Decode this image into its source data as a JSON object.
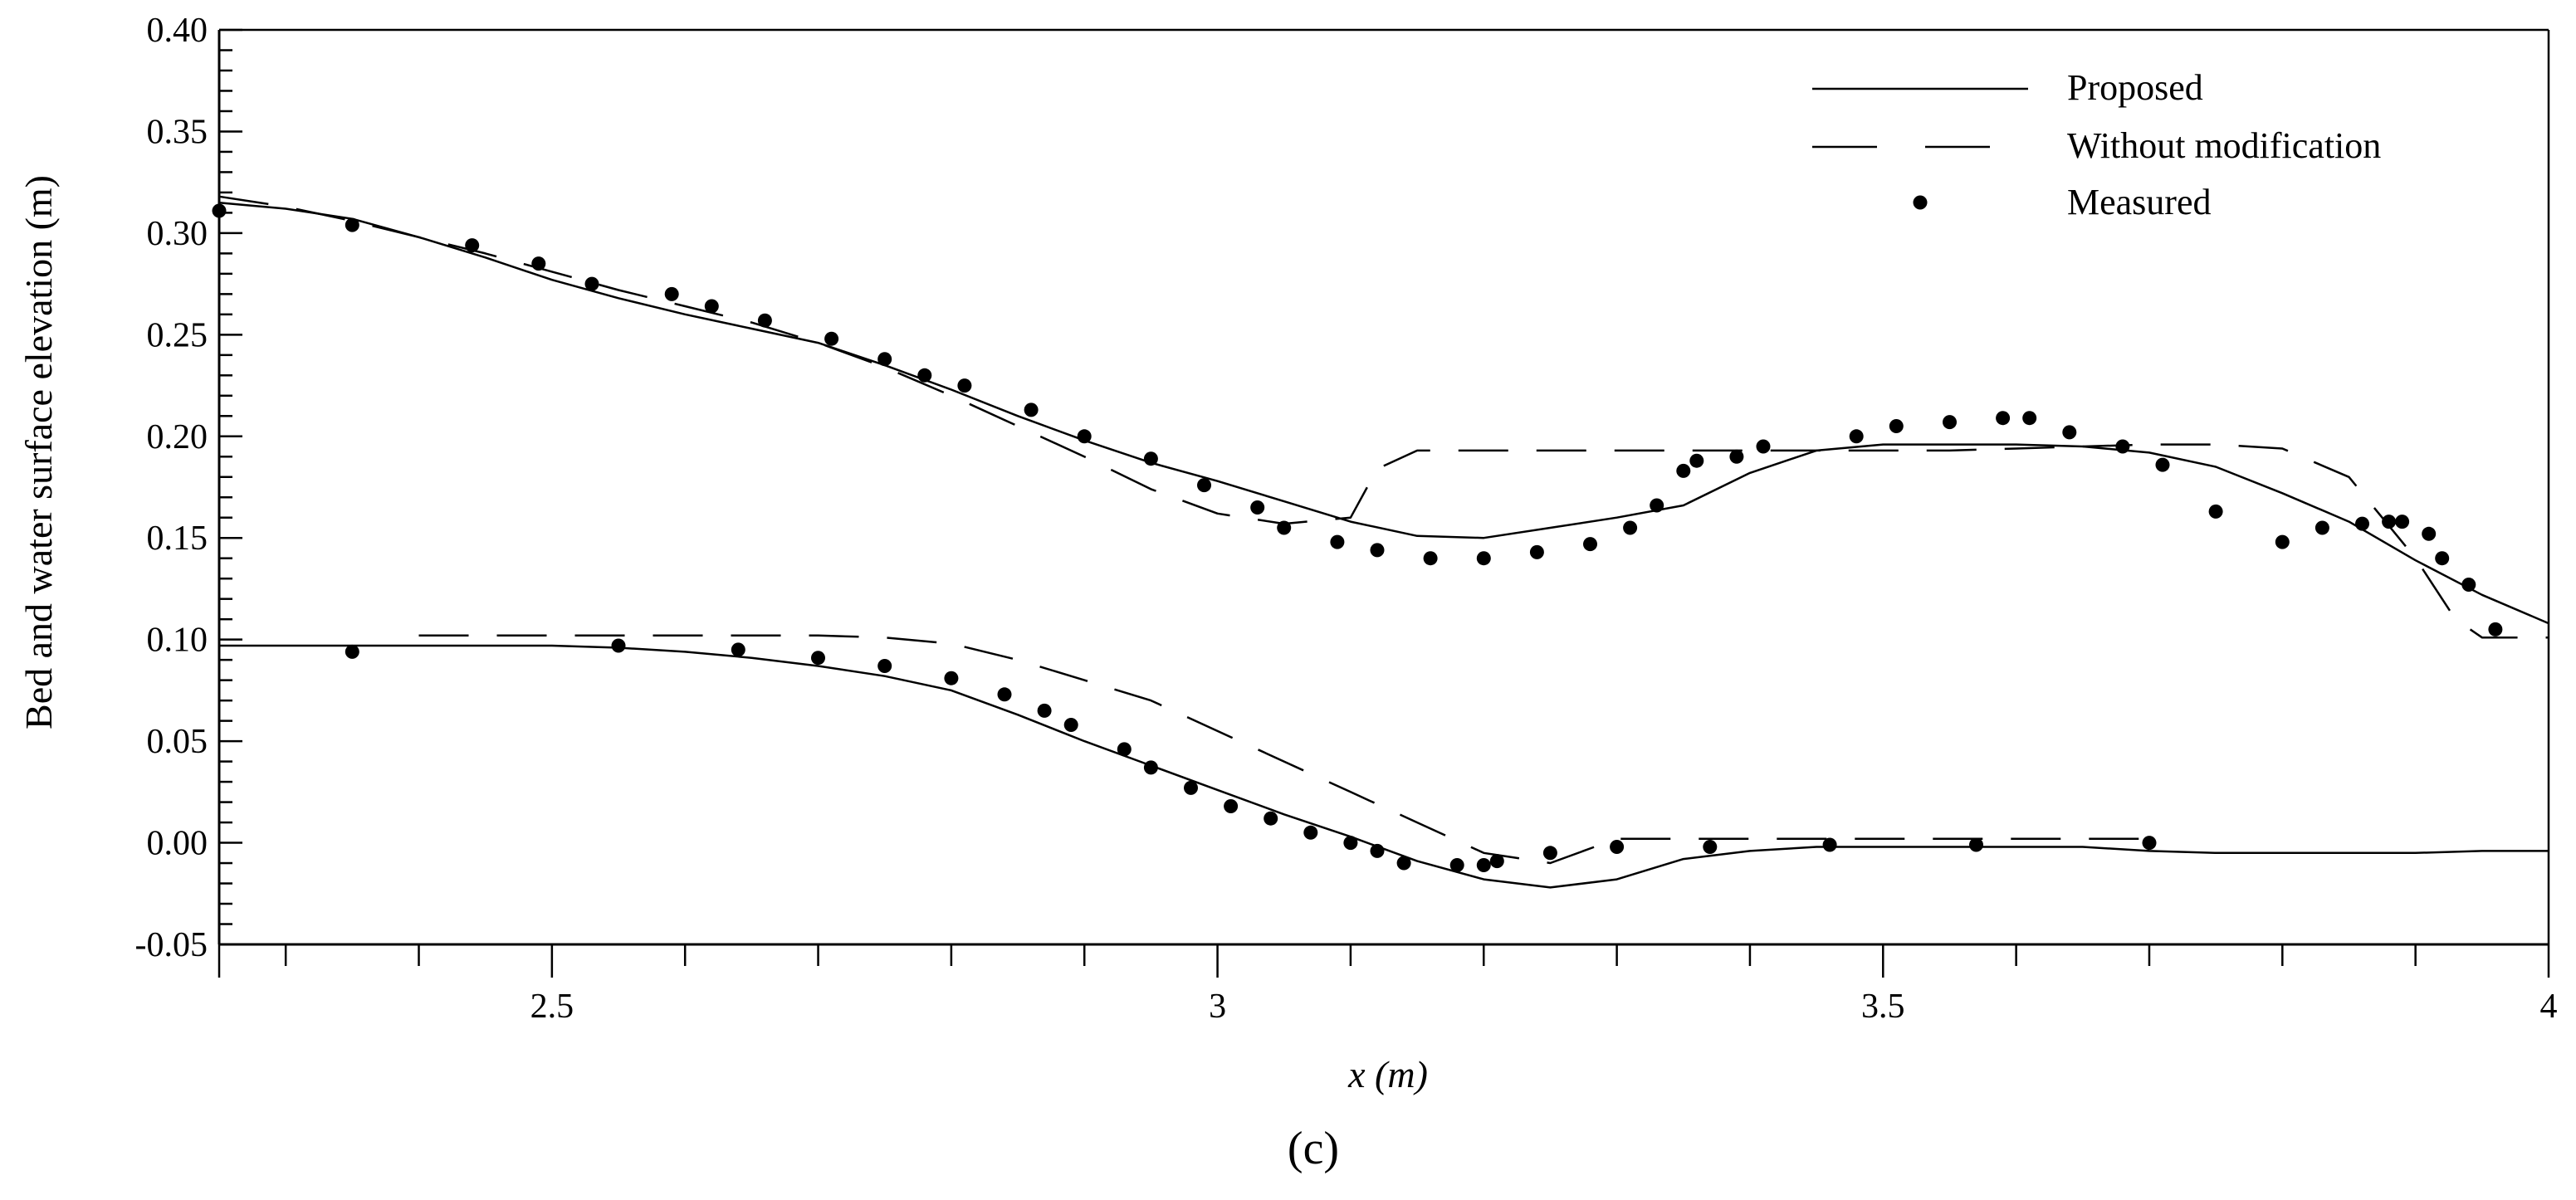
{
  "chart_data": {
    "type": "line",
    "panel_label": "(c)",
    "xlabel": "x (m)",
    "ylabel": "Bed and water surface elevation (m)",
    "xlim": [
      2.25,
      4.0
    ],
    "ylim": [
      -0.05,
      0.4
    ],
    "grid": false,
    "legend_position": "top-right",
    "x_tick_values": [
      2.5,
      3,
      3.5,
      4
    ],
    "x_tick_labels": [
      "2.5",
      "3",
      "3.5",
      "4"
    ],
    "y_tick_values": [
      -0.05,
      0.0,
      0.05,
      0.1,
      0.15,
      0.2,
      0.25,
      0.3,
      0.35,
      0.4
    ],
    "y_tick_labels": [
      "-0.05",
      "0.00",
      "0.05",
      "0.10",
      "0.15",
      "0.20",
      "0.25",
      "0.30",
      "0.35",
      "0.40"
    ],
    "legend": [
      {
        "label": "Proposed",
        "style": "solid"
      },
      {
        "label": "Without modification",
        "style": "dashed"
      },
      {
        "label": "Measured",
        "style": "dot"
      }
    ],
    "series": [
      {
        "name": "Proposed",
        "profile": "water surface",
        "style": "solid",
        "x": [
          2.25,
          2.3,
          2.35,
          2.4,
          2.45,
          2.5,
          2.55,
          2.6,
          2.65,
          2.7,
          2.75,
          2.8,
          2.85,
          2.9,
          2.95,
          3.0,
          3.05,
          3.1,
          3.15,
          3.2,
          3.25,
          3.3,
          3.35,
          3.4,
          3.45,
          3.5,
          3.55,
          3.6,
          3.65,
          3.7,
          3.75,
          3.8,
          3.85,
          3.9,
          3.95,
          4.0
        ],
        "y": [
          0.315,
          0.312,
          0.307,
          0.298,
          0.288,
          0.277,
          0.268,
          0.26,
          0.253,
          0.246,
          0.235,
          0.223,
          0.21,
          0.198,
          0.187,
          0.178,
          0.168,
          0.158,
          0.151,
          0.15,
          0.155,
          0.16,
          0.166,
          0.182,
          0.193,
          0.196,
          0.196,
          0.196,
          0.195,
          0.192,
          0.185,
          0.172,
          0.158,
          0.139,
          0.122,
          0.108
        ]
      },
      {
        "name": "Without modification",
        "profile": "water surface",
        "style": "dashed",
        "x": [
          2.25,
          2.3,
          2.35,
          2.4,
          2.45,
          2.5,
          2.55,
          2.6,
          2.65,
          2.7,
          2.75,
          2.8,
          2.85,
          2.9,
          2.95,
          3.0,
          3.05,
          3.1,
          3.12,
          3.15,
          3.2,
          3.25,
          3.3,
          3.35,
          3.4,
          3.45,
          3.5,
          3.55,
          3.6,
          3.65,
          3.7,
          3.75,
          3.8,
          3.85,
          3.9,
          3.93,
          3.95,
          4.0
        ],
        "y": [
          0.318,
          0.313,
          0.306,
          0.298,
          0.29,
          0.281,
          0.272,
          0.264,
          0.256,
          0.246,
          0.234,
          0.22,
          0.205,
          0.19,
          0.174,
          0.162,
          0.157,
          0.16,
          0.184,
          0.193,
          0.193,
          0.193,
          0.193,
          0.193,
          0.193,
          0.193,
          0.193,
          0.193,
          0.194,
          0.195,
          0.196,
          0.196,
          0.194,
          0.18,
          0.14,
          0.11,
          0.101,
          0.101
        ]
      },
      {
        "name": "Proposed",
        "profile": "bed",
        "style": "solid",
        "x": [
          2.25,
          2.3,
          2.35,
          2.4,
          2.45,
          2.5,
          2.55,
          2.6,
          2.65,
          2.7,
          2.75,
          2.8,
          2.85,
          2.9,
          2.95,
          3.0,
          3.05,
          3.1,
          3.15,
          3.2,
          3.25,
          3.3,
          3.35,
          3.4,
          3.45,
          3.5,
          3.55,
          3.6,
          3.65,
          3.7,
          3.75,
          3.8,
          3.85,
          3.9,
          3.95,
          4.0
        ],
        "y": [
          0.097,
          0.097,
          0.097,
          0.097,
          0.097,
          0.097,
          0.096,
          0.094,
          0.091,
          0.087,
          0.082,
          0.075,
          0.063,
          0.05,
          0.038,
          0.026,
          0.014,
          0.003,
          -0.009,
          -0.018,
          -0.022,
          -0.018,
          -0.008,
          -0.004,
          -0.002,
          -0.002,
          -0.002,
          -0.002,
          -0.002,
          -0.004,
          -0.005,
          -0.005,
          -0.005,
          -0.005,
          -0.004,
          -0.004
        ]
      },
      {
        "name": "Without modification",
        "profile": "bed",
        "style": "dashed",
        "x": [
          2.4,
          2.45,
          2.5,
          2.55,
          2.6,
          2.65,
          2.7,
          2.75,
          2.8,
          2.85,
          2.9,
          2.95,
          3.0,
          3.05,
          3.1,
          3.15,
          3.2,
          3.25,
          3.3,
          3.35,
          3.4,
          3.45,
          3.5,
          3.55,
          3.6,
          3.65,
          3.7
        ],
        "y": [
          0.102,
          0.102,
          0.102,
          0.102,
          0.102,
          0.102,
          0.102,
          0.101,
          0.098,
          0.09,
          0.08,
          0.07,
          0.055,
          0.04,
          0.025,
          0.01,
          -0.005,
          -0.01,
          0.002,
          0.002,
          0.002,
          0.002,
          0.002,
          0.002,
          0.002,
          0.002,
          0.002
        ]
      }
    ],
    "measured_points": {
      "name": "Measured",
      "style": "dot",
      "water_surface": {
        "x": [
          2.25,
          2.35,
          2.44,
          2.49,
          2.53,
          2.59,
          2.62,
          2.66,
          2.71,
          2.75,
          2.78,
          2.81,
          2.86,
          2.9,
          2.95,
          2.99,
          3.03,
          3.05,
          3.09,
          3.12,
          3.16,
          3.2,
          3.24,
          3.28,
          3.31,
          3.33,
          3.35,
          3.36,
          3.39,
          3.41,
          3.48,
          3.51,
          3.55,
          3.59,
          3.61,
          3.64,
          3.68,
          3.71,
          3.75,
          3.8,
          3.83,
          3.86,
          3.88,
          3.89,
          3.91,
          3.92,
          3.94,
          3.96
        ],
        "y": [
          0.311,
          0.304,
          0.294,
          0.285,
          0.275,
          0.27,
          0.264,
          0.257,
          0.248,
          0.238,
          0.23,
          0.225,
          0.213,
          0.2,
          0.189,
          0.176,
          0.165,
          0.155,
          0.148,
          0.144,
          0.14,
          0.14,
          0.143,
          0.147,
          0.155,
          0.166,
          0.183,
          0.188,
          0.19,
          0.195,
          0.2,
          0.205,
          0.207,
          0.209,
          0.209,
          0.202,
          0.195,
          0.186,
          0.163,
          0.148,
          0.155,
          0.157,
          0.158,
          0.158,
          0.152,
          0.14,
          0.127,
          0.105
        ]
      },
      "bed": {
        "x": [
          2.35,
          2.55,
          2.64,
          2.7,
          2.75,
          2.8,
          2.84,
          2.87,
          2.89,
          2.93,
          2.95,
          2.98,
          3.01,
          3.04,
          3.07,
          3.1,
          3.12,
          3.14,
          3.18,
          3.2,
          3.21,
          3.25,
          3.3,
          3.37,
          3.46,
          3.57,
          3.7
        ],
        "y": [
          0.094,
          0.097,
          0.095,
          0.091,
          0.087,
          0.081,
          0.073,
          0.065,
          0.058,
          0.046,
          0.037,
          0.027,
          0.018,
          0.012,
          0.005,
          0.0,
          -0.004,
          -0.01,
          -0.011,
          -0.011,
          -0.009,
          -0.005,
          -0.002,
          -0.002,
          -0.001,
          -0.001,
          0.0
        ]
      }
    }
  }
}
